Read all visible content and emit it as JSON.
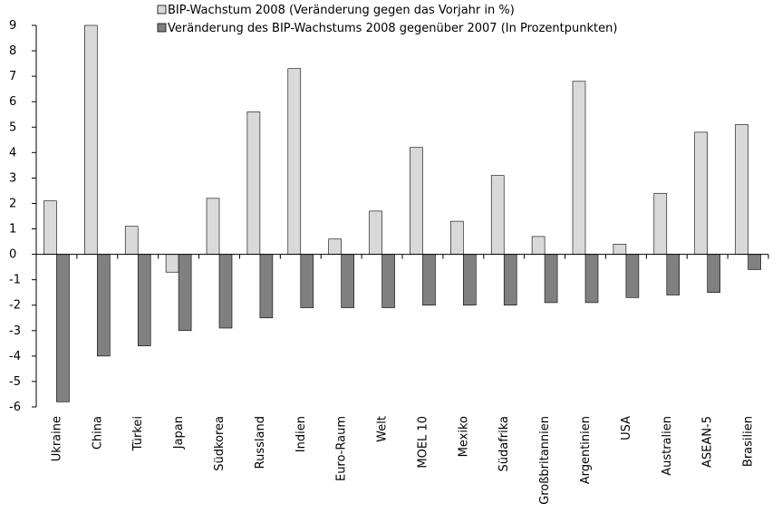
{
  "chart_data": {
    "type": "bar",
    "categories": [
      "Ukraine",
      "China",
      "Türkei",
      "Japan",
      "Südkorea",
      "Russland",
      "Indien",
      "Euro-Raum",
      "Welt",
      "MOEL 10",
      "Mexiko",
      "Südafrika",
      "Großbritannien",
      "Argentinien",
      "USA",
      "Australien",
      "ASEAN-5",
      "Brasilien"
    ],
    "series": [
      {
        "name": "BIP-Wachstum 2008 (Veränderung gegen das Vorjahr in %)",
        "color": "#d9d9d9",
        "values": [
          2.1,
          9.0,
          1.1,
          -0.7,
          2.2,
          5.6,
          7.3,
          0.6,
          1.7,
          4.2,
          1.3,
          3.1,
          0.7,
          6.8,
          0.4,
          2.4,
          4.8,
          5.1
        ]
      },
      {
        "name": "Veränderung des BIP-Wachstums 2008 gegenüber 2007 (In Prozentpunkten)",
        "color": "#808080",
        "values": [
          -5.8,
          -4.0,
          -3.6,
          -3.0,
          -2.9,
          -2.5,
          -2.1,
          -2.1,
          -2.1,
          -2.0,
          -2.0,
          -2.0,
          -1.9,
          -1.9,
          -1.7,
          -1.6,
          -1.5,
          -0.6
        ]
      }
    ],
    "ylim": [
      -6,
      9
    ],
    "yticks": [
      9,
      8,
      7,
      6,
      5,
      4,
      3,
      2,
      1,
      0,
      -1,
      -2,
      -3,
      -4,
      -5,
      -6
    ],
    "grid": false,
    "legend_position": "top"
  }
}
